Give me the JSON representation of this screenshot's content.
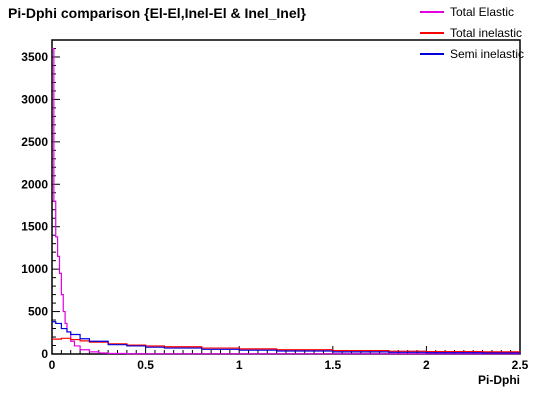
{
  "chart_data": {
    "type": "line",
    "title": "Pi-Dphi comparison {El-El,Inel-El & Inel_Inel}",
    "xlabel": "Pi-Dphi",
    "ylabel": "",
    "xlim": [
      0,
      2.5
    ],
    "ylim": [
      0,
      3700
    ],
    "xticks": [
      0,
      0.5,
      1,
      1.5,
      2,
      2.5
    ],
    "xtick_labels": [
      "0",
      "0.5",
      "1",
      "1.5",
      "2",
      "2.5"
    ],
    "yticks": [
      0,
      500,
      1000,
      1500,
      2000,
      2500,
      3000,
      3500
    ],
    "ytick_labels": [
      "0",
      "500",
      "1000",
      "1500",
      "2000",
      "2500",
      "3000",
      "3500"
    ],
    "grid": false,
    "legend_position": "top-right",
    "series": [
      {
        "name": "Total Elastic",
        "color": "#e000e0",
        "x": [
          0.0,
          0.01,
          0.02,
          0.03,
          0.04,
          0.05,
          0.06,
          0.07,
          0.08,
          0.1,
          0.12,
          0.15,
          0.2,
          0.25,
          0.3,
          0.4,
          0.5
        ],
        "y": [
          3600,
          1800,
          1380,
          1150,
          950,
          700,
          500,
          360,
          260,
          150,
          95,
          50,
          25,
          12,
          6,
          3,
          2
        ]
      },
      {
        "name": "Total inelastic",
        "color": "#ff0000",
        "x": [
          0.0,
          0.05,
          0.1,
          0.15,
          0.2,
          0.3,
          0.4,
          0.5,
          0.6,
          0.8,
          1.0,
          1.2,
          1.5,
          1.8,
          2.0,
          2.3,
          2.5
        ],
        "y": [
          175,
          185,
          170,
          155,
          140,
          120,
          105,
          95,
          85,
          70,
          60,
          50,
          40,
          32,
          28,
          25,
          22
        ]
      },
      {
        "name": "Semi inelastic",
        "color": "#0000dd",
        "x": [
          0.0,
          0.02,
          0.05,
          0.08,
          0.1,
          0.15,
          0.2,
          0.3,
          0.4,
          0.5,
          0.6,
          0.8,
          1.0,
          1.2,
          1.5,
          1.8,
          2.0,
          2.3,
          2.5
        ],
        "y": [
          380,
          360,
          300,
          260,
          230,
          180,
          150,
          110,
          95,
          80,
          70,
          55,
          45,
          35,
          25,
          20,
          15,
          12,
          10
        ]
      }
    ]
  }
}
